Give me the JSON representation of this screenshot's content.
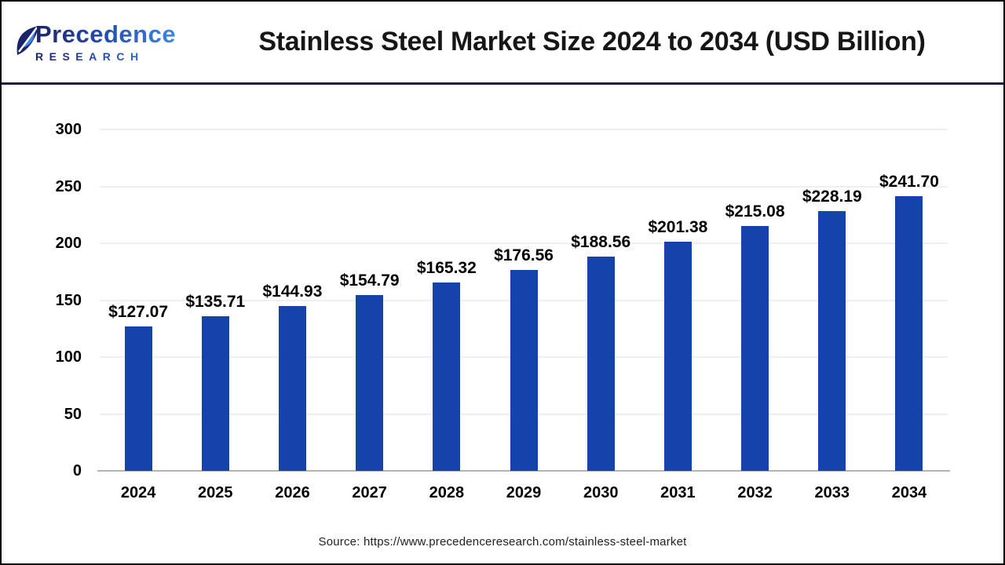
{
  "header": {
    "logo": {
      "brand": "Precedence",
      "sub": "RESEARCH"
    },
    "title": "Stainless Steel Market Size 2024 to 2034 (USD Billion)"
  },
  "footer": {
    "source": "Source: https://www.precedenceresearch.com/stainless-steel-market"
  },
  "colors": {
    "bar": "#1343ab",
    "gridline": "#efefef",
    "axis_line": "#b3b3b3",
    "header_divider": "#1b1b4f",
    "logo_gradient_dark": "#1b2369",
    "logo_gradient_mid": "#2553b6",
    "logo_gradient_light": "#4186e0",
    "text": "#000000"
  },
  "chart_data": {
    "type": "bar",
    "title": "Stainless Steel Market Size 2024 to 2034 (USD Billion)",
    "categories": [
      "2024",
      "2025",
      "2026",
      "2027",
      "2028",
      "2029",
      "2030",
      "2031",
      "2032",
      "2033",
      "2034"
    ],
    "values": [
      127.07,
      135.71,
      144.93,
      154.79,
      165.32,
      176.56,
      188.56,
      201.38,
      215.08,
      228.19,
      241.7
    ],
    "data_labels": [
      "$127.07",
      "$135.71",
      "$144.93",
      "$154.79",
      "$165.32",
      "$176.56",
      "$188.56",
      "$201.38",
      "$215.08",
      "$228.19",
      "$241.70"
    ],
    "xlabel": "",
    "ylabel": "",
    "ylim": [
      0,
      300
    ],
    "y_ticks": [
      0,
      50,
      100,
      150,
      200,
      250,
      300
    ],
    "grid": "horizontal",
    "legend": "none",
    "bar_color": "#1343ab",
    "value_unit": "USD Billion"
  }
}
